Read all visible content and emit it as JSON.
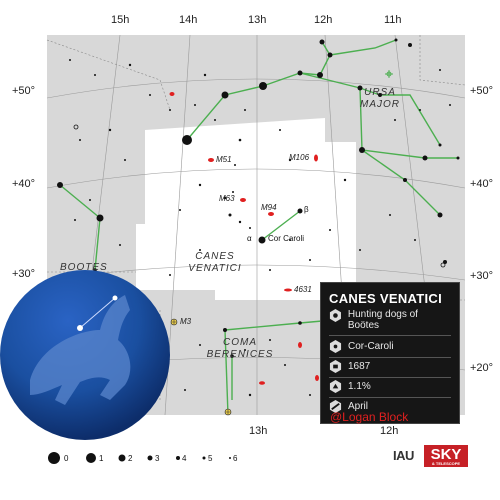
{
  "map": {
    "ra_labels_top": [
      "15h",
      "14h",
      "13h",
      "12h",
      "11h"
    ],
    "ra_labels_bottom": [
      "13h",
      "12h"
    ],
    "dec_labels_left": [
      "+50°",
      "+40°",
      "+30°"
    ],
    "dec_labels_right": [
      "+50°",
      "+40°",
      "+30°",
      "+20°"
    ],
    "constellations": {
      "ursa_major": [
        "URSA",
        "MAJOR"
      ],
      "canes_venatici": [
        "CANES",
        "VENATICI"
      ],
      "bootes": "BOOTES",
      "coma_berenices": [
        "COMA",
        "BERENICES"
      ]
    },
    "objects": {
      "m51": "M51",
      "m106": "M106",
      "m63": "M63",
      "m94": "M94",
      "m3": "M3",
      "ngc4631": "4631"
    },
    "stars": {
      "beta_greek": "β",
      "alpha_greek": "α",
      "alpha_name": "Cor Caroli"
    },
    "magnitude_scale": [
      "0",
      "1",
      "2",
      "3",
      "4",
      "5",
      "6"
    ]
  },
  "info_card": {
    "title": "CANES VENATICI",
    "meaning": "Hunting dogs of Boötes",
    "brightest_star": "Cor-Caroli",
    "year": "1687",
    "sky_area": "1.1%",
    "best_month": "April"
  },
  "credit": "@Logan Block",
  "logos": {
    "iau": "IAU",
    "sky": "SKY",
    "sky_sub": "& TELESCOPE"
  },
  "colors": {
    "region_gray": "#d8d8d8",
    "constellation_white": "#ffffff",
    "line_green": "#4caf50",
    "nebula_red": "#e02020",
    "globe_blue": "#1a4fa0",
    "card_bg": "#161616"
  }
}
